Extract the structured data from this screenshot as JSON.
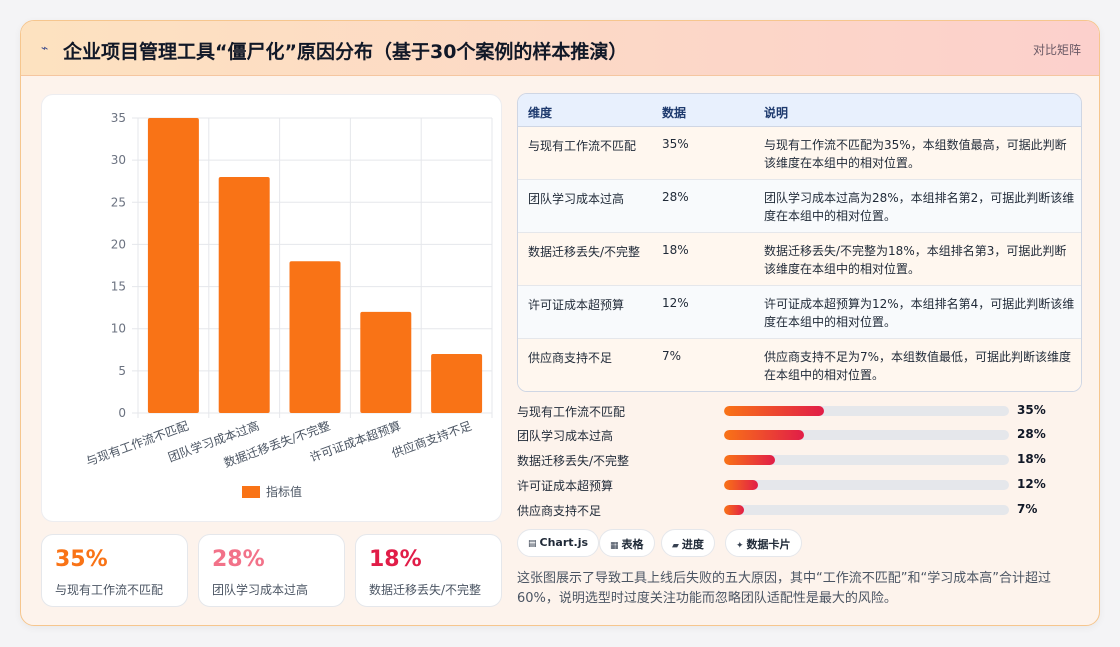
{
  "header": {
    "icon": "lightning-icon",
    "title": "企业项目管理工具“僵尸化”原因分布（基于30个案例的样本推演）",
    "tag": "对比矩阵"
  },
  "chart_data": {
    "type": "bar",
    "categories": [
      "与现有工作流不匹配",
      "团队学习成本过高",
      "数据迁移丢失/不完整",
      "许可证成本超预算",
      "供应商支持不足"
    ],
    "series": [
      {
        "name": "指标值",
        "values": [
          35,
          28,
          18,
          12,
          7
        ]
      }
    ],
    "ylim": [
      0,
      35
    ],
    "yticks": [
      "0",
      "5",
      "10",
      "15",
      "20",
      "25",
      "30",
      "35"
    ],
    "grid": true,
    "legend": "bottom",
    "bar_color": "#f97316"
  },
  "stats": [
    {
      "value": "35%",
      "label": "与现有工作流不匹配",
      "color": "#f97316"
    },
    {
      "value": "28%",
      "label": "团队学习成本过高",
      "color": "#f27289"
    },
    {
      "value": "18%",
      "label": "数据迁移丢失/不完整",
      "color": "#e11d48"
    }
  ],
  "table": {
    "headers": [
      "维度",
      "数据",
      "说明"
    ],
    "rows": [
      {
        "dim": "与现有工作流不匹配",
        "val": "35%",
        "desc": "与现有工作流不匹配为35%，本组数值最高，可据此判断该维度在本组中的相对位置。"
      },
      {
        "dim": "团队学习成本过高",
        "val": "28%",
        "desc": "团队学习成本过高为28%，本组排名第2，可据此判断该维度在本组中的相对位置。"
      },
      {
        "dim": "数据迁移丢失/不完整",
        "val": "18%",
        "desc": "数据迁移丢失/不完整为18%，本组排名第3，可据此判断该维度在本组中的相对位置。"
      },
      {
        "dim": "许可证成本超预算",
        "val": "12%",
        "desc": "许可证成本超预算为12%，本组排名第4，可据此判断该维度在本组中的相对位置。"
      },
      {
        "dim": "供应商支持不足",
        "val": "7%",
        "desc": "供应商支持不足为7%，本组数值最低，可据此判断该维度在本组中的相对位置。"
      }
    ]
  },
  "progress": [
    {
      "label": "与现有工作流不匹配",
      "value": 35,
      "text": "35%"
    },
    {
      "label": "团队学习成本过高",
      "value": 28,
      "text": "28%"
    },
    {
      "label": "数据迁移丢失/不完整",
      "value": 18,
      "text": "18%"
    },
    {
      "label": "许可证成本超预算",
      "value": 12,
      "text": "12%"
    },
    {
      "label": "供应商支持不足",
      "value": 7,
      "text": "7%"
    }
  ],
  "pills": [
    {
      "icon": "chart-icon",
      "glyph": "▤",
      "label": "Chart.js"
    },
    {
      "icon": "table-icon",
      "glyph": "▦",
      "label": "表格"
    },
    {
      "icon": "progress-icon",
      "glyph": "▰",
      "label": "进度"
    },
    {
      "icon": "sparkle-icon",
      "glyph": "✦",
      "label": "数据卡片"
    }
  ],
  "summary": "这张图展示了导致工具上线后失败的五大原因，其中“工作流不匹配”和“学习成本高”合计超过60%，说明选型时过度关注功能而忽略团队适配性是最大的风险。"
}
